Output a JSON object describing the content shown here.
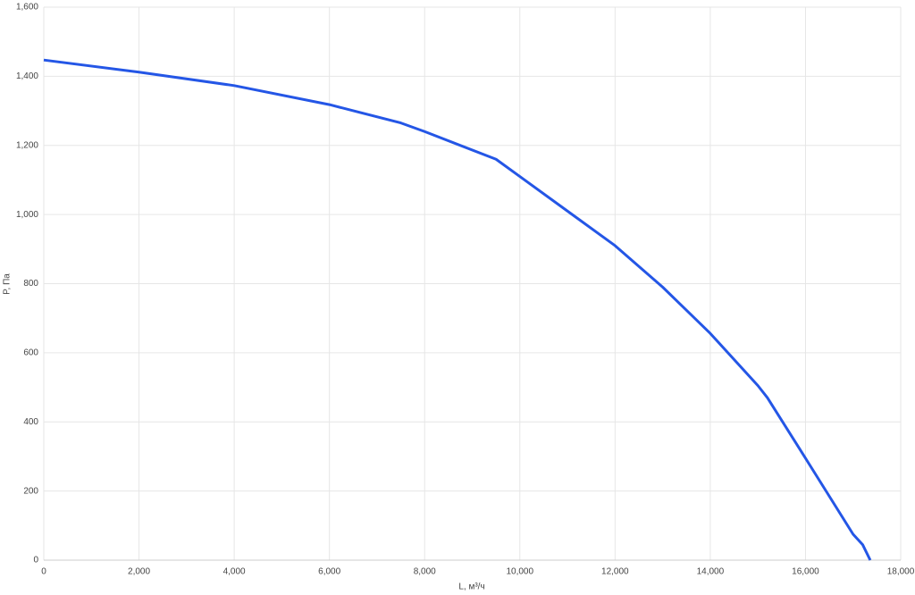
{
  "chart_data": {
    "type": "line",
    "x_label": "L, м³/ч",
    "y_label": "P, Па",
    "series": [
      {
        "name": "P",
        "color": "#2456e6",
        "x": [
          0,
          2000,
          4000,
          6000,
          7500,
          8000,
          9500,
          10000,
          11000,
          12000,
          13000,
          14000,
          15000,
          15200,
          16000,
          17000,
          17200,
          17360
        ],
        "values": [
          1447,
          1412,
          1373,
          1318,
          1265,
          1240,
          1160,
          1110,
          1010,
          910,
          790,
          656,
          505,
          470,
          295,
          75,
          45,
          0
        ]
      }
    ],
    "xlim": [
      0,
      18000
    ],
    "xticks": [
      0,
      {
        "value": 2000,
        "label": "2,000"
      },
      {
        "value": 4000,
        "label": "4,000"
      },
      {
        "value": 6000,
        "label": "6,000"
      },
      {
        "value": 8000,
        "label": "8,000"
      },
      {
        "value": 10000,
        "label": "10,000"
      },
      {
        "value": 12000,
        "label": "12,000"
      },
      {
        "value": 14000,
        "label": "14,000"
      },
      {
        "value": 16000,
        "label": "16,000"
      },
      {
        "value": 18000,
        "label": "18,000"
      }
    ],
    "ylim": [
      0,
      1600
    ],
    "yticks": [
      0,
      200,
      400,
      600,
      800,
      {
        "value": 1000,
        "label": "1,000"
      },
      {
        "value": 1200,
        "label": "1,200"
      },
      {
        "value": 1400,
        "label": "1,400"
      },
      {
        "value": 1600,
        "label": "1,600"
      }
    ],
    "grid": true
  }
}
